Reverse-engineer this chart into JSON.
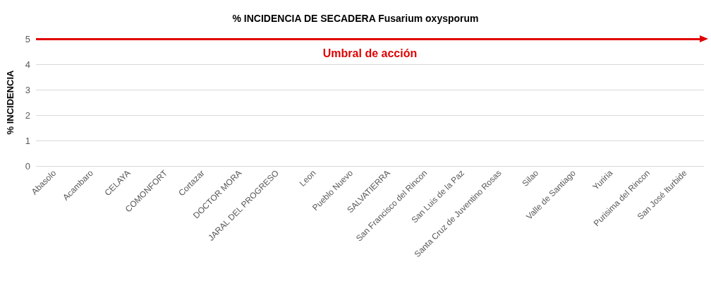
{
  "chart_data": {
    "type": "bar",
    "title": "% INCIDENCIA DE SECADERA Fusarium oxysporum",
    "ylabel": "% INCIDENCIA",
    "categories": [
      "Abasolo",
      "Acambaro",
      "CELAYA",
      "COMONFORT",
      "Cortazar",
      "DOCTOR MORA",
      "JARAL DEL PROGRESO",
      "Leon",
      "Pueblo Nuevo",
      "SALVATIERRA",
      "San Francisco del Rincon",
      "San Luis de la Paz",
      "Santa Cruz de Juventino Rosas",
      "Silao",
      "Valle de Santiago",
      "Yuriria",
      "Purisima del Rincon",
      "San José Iturbide"
    ],
    "values": [
      0,
      0,
      0,
      0,
      0,
      0,
      0,
      0,
      0,
      0,
      0,
      0,
      0,
      0,
      0,
      0,
      0,
      0
    ],
    "ylim": [
      0,
      5
    ],
    "yticks": [
      0,
      1,
      2,
      3,
      4,
      5
    ],
    "grid": "y",
    "ref_lines": [
      {
        "axis": "y",
        "value": 5,
        "label": "Umbral de acción",
        "color": "#e00000"
      }
    ]
  }
}
